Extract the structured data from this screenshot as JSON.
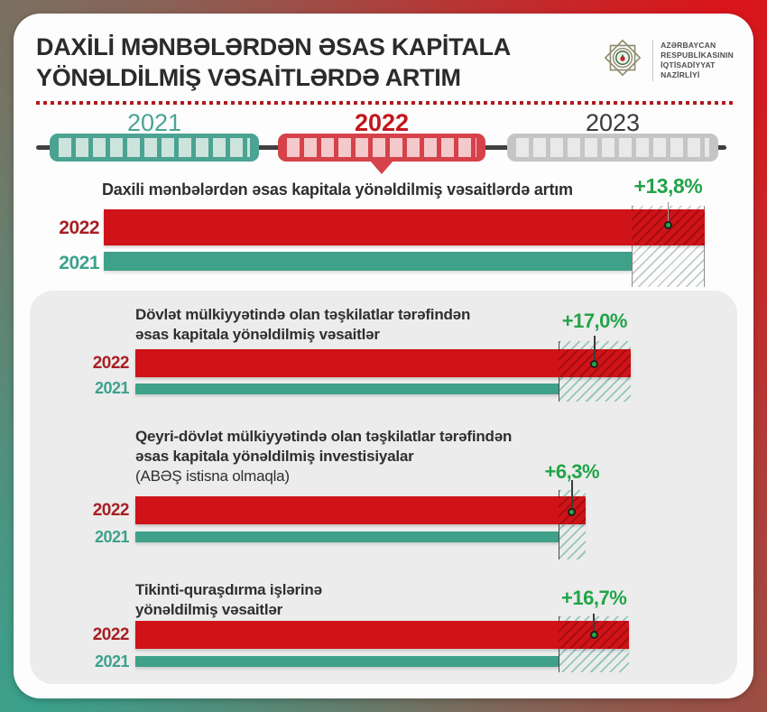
{
  "header": {
    "title_line1": "DAXİLİ MƏNBƏLƏRDƏN ƏSAS KAPİTALA",
    "title_line2": "YÖNƏLDİLMİŞ VƏSAİTLƏRDƏ ARTIM",
    "logo": {
      "text_lines": [
        "AZƏRBAYCAN",
        "RESPUBLİKASININ",
        "İQTİSADİYYAT",
        "NAZİRLİYİ"
      ]
    }
  },
  "timeline": {
    "years": [
      {
        "label": "2021",
        "state": "past",
        "color": "#4ba392"
      },
      {
        "label": "2022",
        "state": "current",
        "color": "#d6424a"
      },
      {
        "label": "2023",
        "state": "future",
        "color": "#c5c5c7"
      }
    ]
  },
  "colors": {
    "bar_2022": "#cf1318",
    "bar_2021": "#3fa189",
    "growth_label": "#22a349",
    "year_label_2022": "#a71f24",
    "year_label_2021": "#3da18c",
    "dotted_separator": "#b2181d",
    "panel_gray": "#ebeceb"
  },
  "chart_data": [
    {
      "type": "bar",
      "title": "Daxili mənbələrdən əsas kapitala yönəldilmiş vəsaitlərdə artım",
      "title_lines": [
        "Daxili mənbələrdən əsas kapitala yönəldilmiş vəsaitlərdə artım"
      ],
      "categories": [
        "2022",
        "2021"
      ],
      "growth_label": "+13,8%",
      "growth_pct": 13.8,
      "series": [
        {
          "name": "2022",
          "relative_value": 113.8
        },
        {
          "name": "2021",
          "relative_value": 100
        }
      ]
    },
    {
      "type": "bar",
      "title": "Dövlət mülkiyyətində olan təşkilatlar tərəfindən əsas kapitala yönəldilmiş vəsaitlər",
      "title_lines": [
        "Dövlət mülkiyyətində olan təşkilatlar tərəfindən",
        "əsas kapitala yönəldilmiş vəsaitlər"
      ],
      "categories": [
        "2022",
        "2021"
      ],
      "growth_label": "+17,0%",
      "growth_pct": 17.0,
      "series": [
        {
          "name": "2022",
          "relative_value": 117.0
        },
        {
          "name": "2021",
          "relative_value": 100
        }
      ]
    },
    {
      "type": "bar",
      "title": "Qeyri-dövlət mülkiyyətində olan təşkilatlar tərəfindən əsas kapitala yönəldilmiş investisiyalar (ABƏŞ istisna olmaqla)",
      "title_lines": [
        "Qeyri-dövlət mülkiyyətində olan təşkilatlar tərəfindən",
        "əsas kapitala yönəldilmiş investisiyalar",
        "(ABƏŞ istisna olmaqla)"
      ],
      "categories": [
        "2022",
        "2021"
      ],
      "growth_label": "+6,3%",
      "growth_pct": 6.3,
      "series": [
        {
          "name": "2022",
          "relative_value": 106.3
        },
        {
          "name": "2021",
          "relative_value": 100
        }
      ]
    },
    {
      "type": "bar",
      "title": "Tikinti-quraşdırma işlərinə yönəldilmiş vəsaitlər",
      "title_lines": [
        "Tikinti-quraşdırma işlərinə",
        "yönəldilmiş vəsaitlər"
      ],
      "categories": [
        "2022",
        "2021"
      ],
      "growth_label": "+16,7%",
      "growth_pct": 16.7,
      "series": [
        {
          "name": "2022",
          "relative_value": 116.7
        },
        {
          "name": "2021",
          "relative_value": 100
        }
      ]
    }
  ]
}
